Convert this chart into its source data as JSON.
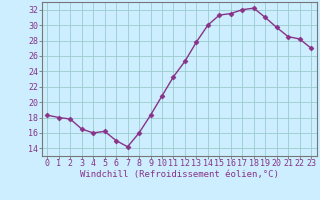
{
  "x": [
    0,
    1,
    2,
    3,
    4,
    5,
    6,
    7,
    8,
    9,
    10,
    11,
    12,
    13,
    14,
    15,
    16,
    17,
    18,
    19,
    20,
    21,
    22,
    23
  ],
  "y": [
    18.3,
    18.0,
    17.8,
    16.5,
    16.0,
    16.2,
    15.0,
    14.2,
    16.0,
    18.3,
    20.8,
    23.3,
    25.3,
    27.8,
    30.0,
    31.3,
    31.5,
    32.0,
    32.2,
    31.0,
    29.7,
    28.5,
    28.2,
    27.0
  ],
  "line_color": "#883388",
  "marker": "D",
  "marker_size": 2.5,
  "bg_color": "#cceeff",
  "grid_color": "#99cccc",
  "xlabel": "Windchill (Refroidissement éolien,°C)",
  "xlabel_fontsize": 6.5,
  "tick_fontsize": 6,
  "ylim": [
    13,
    33
  ],
  "yticks": [
    14,
    16,
    18,
    20,
    22,
    24,
    26,
    28,
    30,
    32
  ],
  "xticks": [
    0,
    1,
    2,
    3,
    4,
    5,
    6,
    7,
    8,
    9,
    10,
    11,
    12,
    13,
    14,
    15,
    16,
    17,
    18,
    19,
    20,
    21,
    22,
    23
  ],
  "spine_color": "#777777"
}
